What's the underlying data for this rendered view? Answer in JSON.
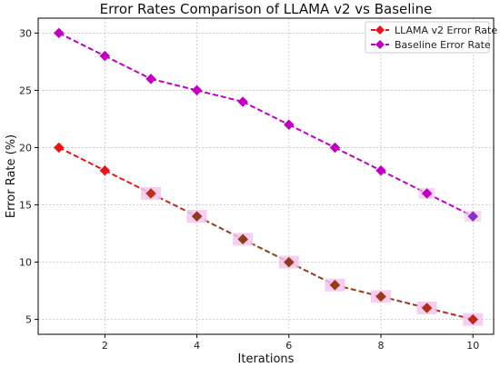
{
  "chart_data": {
    "type": "line",
    "title": "Error Rates Comparison of LLAMA v2 vs Baseline",
    "xlabel": "Iterations",
    "ylabel": "Error Rate (%)",
    "xlim": [
      0.55,
      10.45
    ],
    "ylim": [
      3.7,
      31.3
    ],
    "xticks": [
      2,
      4,
      6,
      8,
      10
    ],
    "yticks": [
      5,
      10,
      15,
      20,
      25,
      30
    ],
    "grid": true,
    "legend_position": "top-right",
    "x": [
      1,
      2,
      3,
      4,
      5,
      6,
      7,
      8,
      9,
      10
    ],
    "series": [
      {
        "name": "LLAMA v2 Error Rate",
        "values": [
          20,
          18,
          16,
          14,
          12,
          10,
          8,
          7,
          6,
          5
        ],
        "color": "#e8141a",
        "marker_colors": [
          "#ee1111",
          "#e4171a",
          "#b3361c",
          "#903b1c",
          "#8d3e1b",
          "#8a3c1c",
          "#9a3a1a",
          "#9b3819",
          "#b52d18",
          "#bb2a1f"
        ],
        "marker_halo": "#f3c6ee",
        "line_colors": [
          "#ee1111",
          "#e4171a",
          "#b3361c",
          "#903b1c",
          "#8d3e1b",
          "#8a3c1c",
          "#9a3a1a",
          "#9b3819",
          "#b52d18"
        ],
        "line_style": "dashed",
        "marker": "diamond"
      },
      {
        "name": "Baseline Error Rate",
        "values": [
          30,
          28,
          26,
          25,
          24,
          22,
          20,
          18,
          16,
          14
        ],
        "color": "#bf00bf",
        "marker_colors": [
          "#bf00bf",
          "#bf00bf",
          "#bf00bf",
          "#bf00bf",
          "#bf00bf",
          "#bf00bf",
          "#bf00bf",
          "#bf00bf",
          "#bf00bf",
          "#8b2ec4"
        ],
        "marker_halo": "#f3c6ee",
        "line_style": "dashed",
        "marker": "diamond"
      }
    ]
  }
}
